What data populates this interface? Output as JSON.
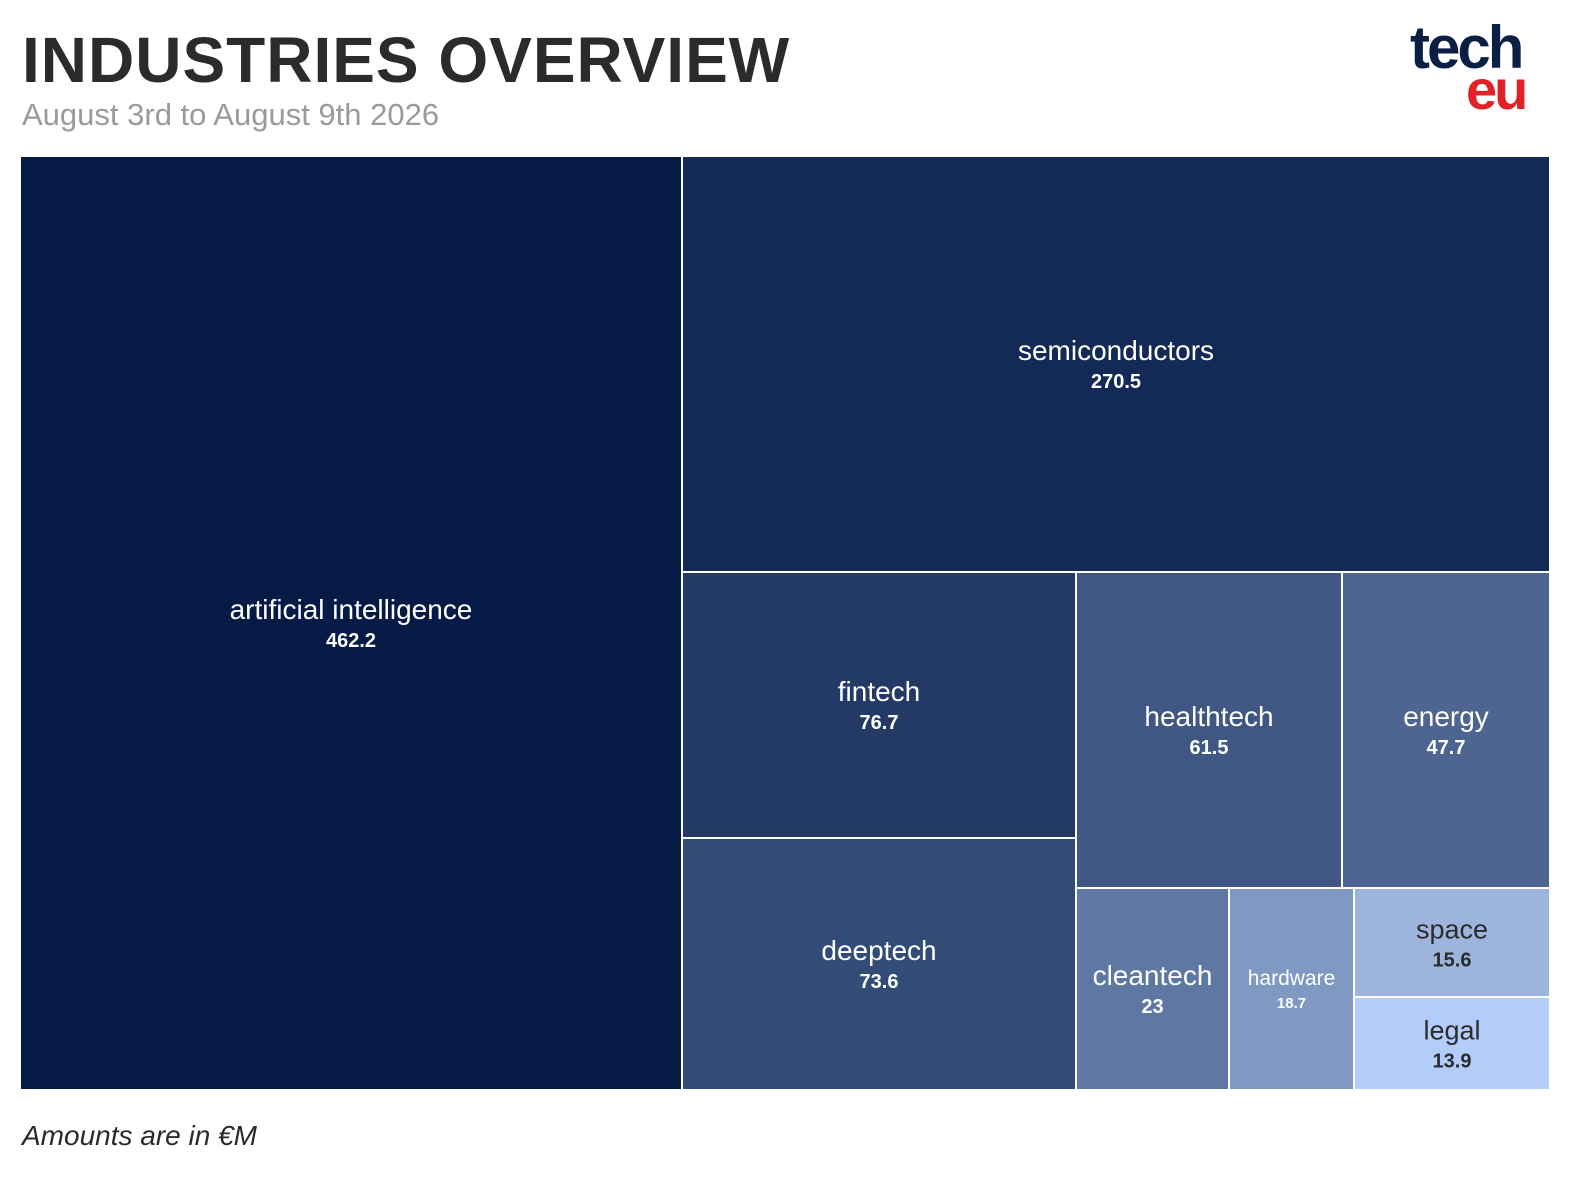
{
  "header": {
    "title": "INDUSTRIES OVERVIEW",
    "subtitle": "August 3rd to August 9th 2026"
  },
  "logo": {
    "top": "tech",
    "bottom": "eu"
  },
  "footnote": "Amounts are in €M",
  "chart_data": {
    "type": "treemap",
    "title": "INDUSTRIES OVERVIEW",
    "subtitle": "August 3rd to August 9th 2026",
    "unit": "€M",
    "items": [
      {
        "name": "artificial intelligence",
        "value": 462.2,
        "value_label": "462.2",
        "color": "#051b45",
        "text_color": "#ffffff"
      },
      {
        "name": "semiconductors",
        "value": 270.5,
        "value_label": "270.5",
        "color": "#142a56",
        "text_color": "#ffffff"
      },
      {
        "name": "fintech",
        "value": 76.7,
        "value_label": "76.7",
        "color": "#233a66",
        "text_color": "#ffffff"
      },
      {
        "name": "deeptech",
        "value": 73.6,
        "value_label": "73.6",
        "color": "#324b77",
        "text_color": "#ffffff"
      },
      {
        "name": "healthtech",
        "value": 61.5,
        "value_label": "61.5",
        "color": "#3f5782",
        "text_color": "#ffffff"
      },
      {
        "name": "energy",
        "value": 47.7,
        "value_label": "47.7",
        "color": "#4d6590",
        "text_color": "#ffffff"
      },
      {
        "name": "cleantech",
        "value": 23,
        "value_label": "23",
        "color": "#5f78a3",
        "text_color": "#ffffff"
      },
      {
        "name": "hardware",
        "value": 18.7,
        "value_label": "18.7",
        "color": "#8099c2",
        "text_color": "#ffffff"
      },
      {
        "name": "space",
        "value": 15.6,
        "value_label": "15.6",
        "color": "#9db5dd",
        "text_color": "#2b2b2b"
      },
      {
        "name": "legal",
        "value": 13.9,
        "value_label": "13.9",
        "color": "#b3cdfb",
        "text_color": "#2b2b2b"
      }
    ]
  }
}
